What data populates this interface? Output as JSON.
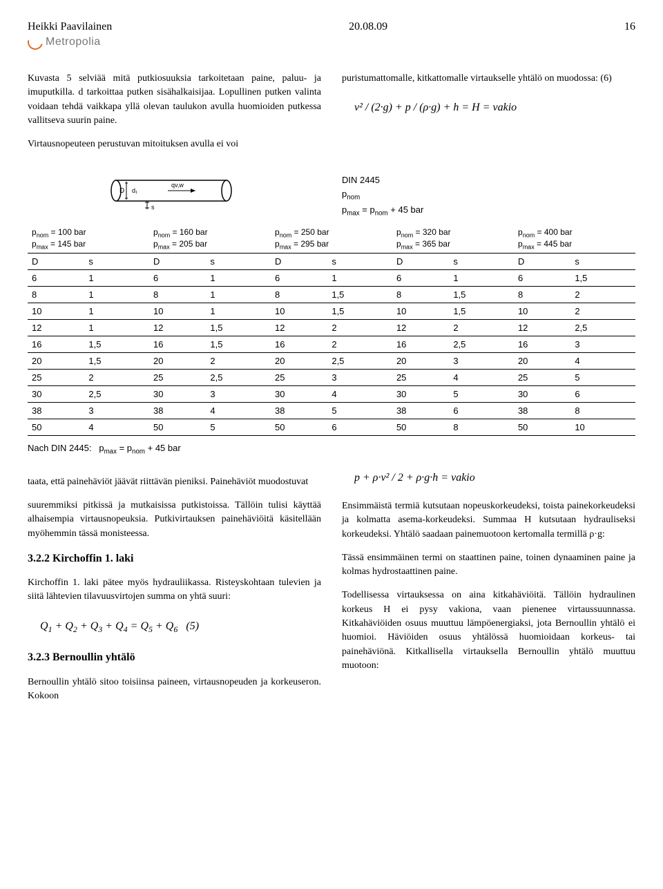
{
  "header": {
    "author": "Heikki Paavilainen",
    "date": "20.08.09",
    "page": "16",
    "logo_text": "Metropolia"
  },
  "left_top_p1": "Kuvasta 5 selviää mitä putkiosuuksia tarkoitetaan paine, paluu- ja imuputkilla. d tarkoittaa putken sisähalkaisijaa. Lopullinen putken valinta voidaan tehdä vaikkapa yllä olevan taulukon avulla huomioiden putkessa vallitseva suurin paine.",
  "left_top_p2": "Virtausnopeuteen perustuvan mitoituksen avulla ei voi",
  "right_top_p": "puristumattomalle, kitkattomalle virtaukselle yhtälö on muodossa: (6)",
  "formula_bernoulli": "v² / (2·g) + p / (ρ·g) + h = H = vakio",
  "din_label": "DIN 2445",
  "din_pnom": "pnom",
  "din_pmax": "pmax = pnom + 45 bar",
  "column_headers": [
    {
      "pnom": "pnom = 100 bar",
      "pmax": "pmax = 145 bar"
    },
    {
      "pnom": "pnom = 160 bar",
      "pmax": "pmax = 205 bar"
    },
    {
      "pnom": "pnom = 250 bar",
      "pmax": "pmax = 295 bar"
    },
    {
      "pnom": "pnom = 320 bar",
      "pmax": "pmax = 365 bar"
    },
    {
      "pnom": "pnom = 400 bar",
      "pmax": "pmax = 445 bar"
    }
  ],
  "table": {
    "col_labels": [
      "D",
      "s",
      "D",
      "s",
      "D",
      "s",
      "D",
      "s",
      "D",
      "s"
    ],
    "rows": [
      [
        "6",
        "1",
        "6",
        "1",
        "6",
        "1",
        "6",
        "1",
        "6",
        "1,5"
      ],
      [
        "8",
        "1",
        "8",
        "1",
        "8",
        "1,5",
        "8",
        "1,5",
        "8",
        "2"
      ],
      [
        "10",
        "1",
        "10",
        "1",
        "10",
        "1,5",
        "10",
        "1,5",
        "10",
        "2"
      ],
      [
        "12",
        "1",
        "12",
        "1,5",
        "12",
        "2",
        "12",
        "2",
        "12",
        "2,5"
      ],
      [
        "16",
        "1,5",
        "16",
        "1,5",
        "16",
        "2",
        "16",
        "2,5",
        "16",
        "3"
      ],
      [
        "20",
        "1,5",
        "20",
        "2",
        "20",
        "2,5",
        "20",
        "3",
        "20",
        "4"
      ],
      [
        "25",
        "2",
        "25",
        "2,5",
        "25",
        "3",
        "25",
        "4",
        "25",
        "5"
      ],
      [
        "30",
        "2,5",
        "30",
        "3",
        "30",
        "4",
        "30",
        "5",
        "30",
        "6"
      ],
      [
        "38",
        "3",
        "38",
        "4",
        "38",
        "5",
        "38",
        "6",
        "38",
        "8"
      ],
      [
        "50",
        "4",
        "50",
        "5",
        "50",
        "6",
        "50",
        "8",
        "50",
        "10"
      ]
    ]
  },
  "nach": "Nach DIN 2445:   pmax = pnom + 45 bar",
  "left_bottom_p1": "taata, että painehäviöt jäävät riittävän pieniksi. Painehäviöt muodostuvat",
  "left_bottom_p2": "suuremmiksi pitkissä ja mutkaisissa putkistoissa. Tällöin tulisi käyttää alhaisempia virtausnopeuksia. Putkivirtauksen painehäviöitä käsitellään myöhemmin tässä monisteessa.",
  "h322": "3.2.2 Kirchoffin 1. laki",
  "kirch_p": "Kirchoffin 1. laki pätee myös hydrauliikassa. Risteyskohtaan tulevien ja siitä lähtevien tilavuusvirtojen summa on yhtä suuri:",
  "kirch_formula": "Q₁ + Q₂ + Q₃ + Q₄ = Q₅ + Q₆   (5)",
  "h323": "3.2.3 Bernoullin yhtälö",
  "bern_p": "Bernoullin yhtälö sitoo toisiinsa paineen, virtausnopeuden ja korkeuseron. Kokoon",
  "formula_right": "p + ρ·v² / 2 + ρ·g·h = vakio",
  "right_bottom_p": "Ensimmäistä termiä kutsutaan nopeuskorkeudeksi, toista painekorkeudeksi ja kolmatta asema-korkeudeksi. Summaa H kutsutaan hydrauliseksi korkeudeksi. Yhtälö saadaan painemuotoon kertomalla termillä ρ·g:",
  "right_bottom_p2": "Tässä ensimmäinen termi on staattinen paine, toinen dynaaminen paine ja kolmas hydrostaattinen paine.",
  "right_bottom_p3": "Todellisessa virtauksessa on aina kitkahäviöitä. Tällöin hydraulinen korkeus H ei pysy vakiona, vaan pienenee virtaussuunnassa. Kitkahäviöiden osuus muuttuu lämpöenergiaksi, jota Bernoullin yhtälö ei huomioi. Häviöiden osuus yhtälössä huomioidaan korkeus- tai painehäviönä. Kitkallisella virtauksella Bernoullin yhtälö muuttuu muotoon:"
}
